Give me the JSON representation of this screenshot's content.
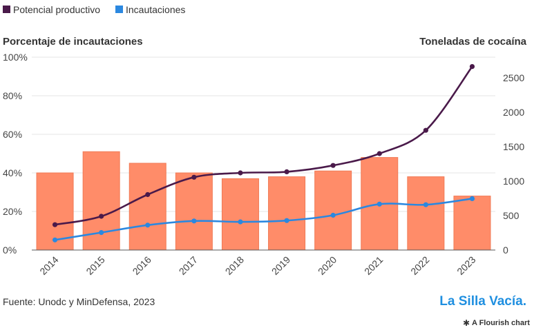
{
  "legend": [
    {
      "label": "Potencial productivo",
      "color": "#4a1a4a"
    },
    {
      "label": "Incautaciones",
      "color": "#2b88e0"
    }
  ],
  "axis_titles": {
    "left": "Porcentaje de incautaciones",
    "right": "Toneladas de cocaína"
  },
  "footer": {
    "source": "Fuente: Unodc y MinDefensa, 2023",
    "brand": "La Silla Vacía.",
    "flourish": "A Flourish chart"
  },
  "colors": {
    "bars": "#ff8c69",
    "bar_stroke": "#f07a55",
    "potencial": "#4a1a4a",
    "incautaciones": "#2b88e0",
    "grid": "#e6e6e6"
  },
  "chart_data": {
    "type": "bar",
    "categories": [
      "2014",
      "2015",
      "2016",
      "2017",
      "2018",
      "2019",
      "2020",
      "2021",
      "2022",
      "2023"
    ],
    "bars": {
      "axis": "left",
      "values": [
        40,
        51,
        45,
        40,
        37,
        38,
        41,
        48,
        38,
        28
      ]
    },
    "series": [
      {
        "name": "Potencial productivo",
        "type": "line",
        "axis": "right",
        "values": [
          368,
          490,
          805,
          1057,
          1120,
          1136,
          1228,
          1400,
          1738,
          2664
        ]
      },
      {
        "name": "Incautaciones",
        "type": "line",
        "axis": "right",
        "values": [
          147,
          254,
          362,
          422,
          409,
          428,
          505,
          667,
          658,
          746
        ]
      }
    ],
    "ylim_left": [
      0,
      100
    ],
    "yticks_left": [
      "0%",
      "20%",
      "40%",
      "60%",
      "80%",
      "100%"
    ],
    "ylim_right": [
      0,
      2800
    ],
    "yticks_right": [
      "0",
      "500",
      "1000",
      "1500",
      "2000",
      "2500"
    ],
    "grid": true,
    "legend_position": "top-left"
  }
}
